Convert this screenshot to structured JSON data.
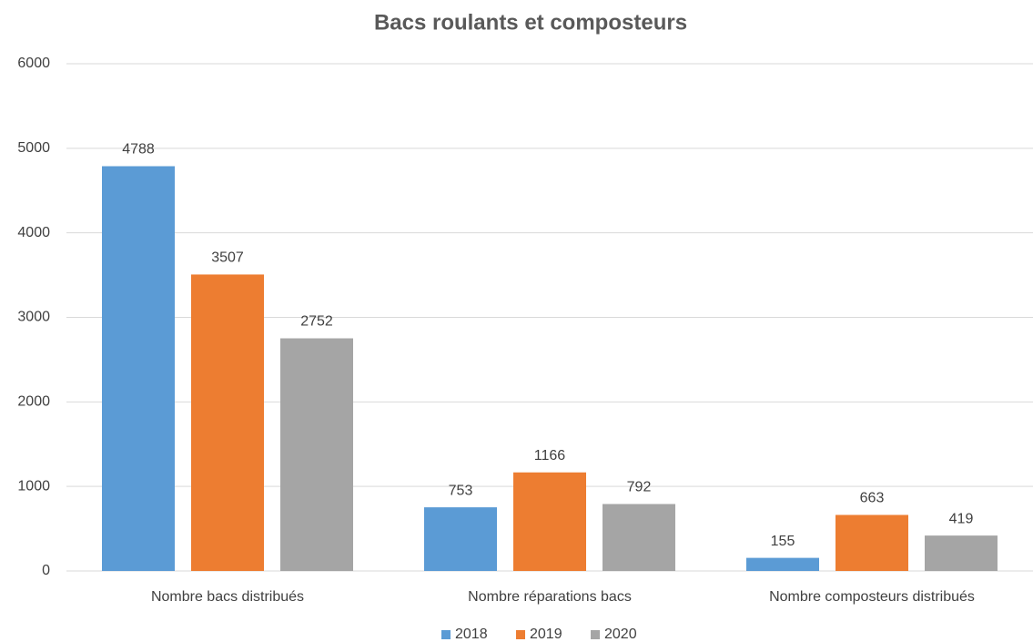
{
  "chart_data": {
    "type": "bar",
    "title": "Bacs roulants et composteurs",
    "categories": [
      "Nombre bacs distribués",
      "Nombre réparations bacs",
      "Nombre composteurs distribués"
    ],
    "series": [
      {
        "name": "2018",
        "color": "#5b9bd5",
        "values": [
          4788,
          753,
          155
        ]
      },
      {
        "name": "2019",
        "color": "#ed7d31",
        "values": [
          3507,
          1166,
          663
        ]
      },
      {
        "name": "2020",
        "color": "#a5a5a5",
        "values": [
          2752,
          792,
          419
        ]
      }
    ],
    "ylim": [
      0,
      6000
    ],
    "yticks": [
      0,
      1000,
      2000,
      3000,
      4000,
      5000,
      6000
    ],
    "grid": true,
    "legend": "bottom"
  }
}
